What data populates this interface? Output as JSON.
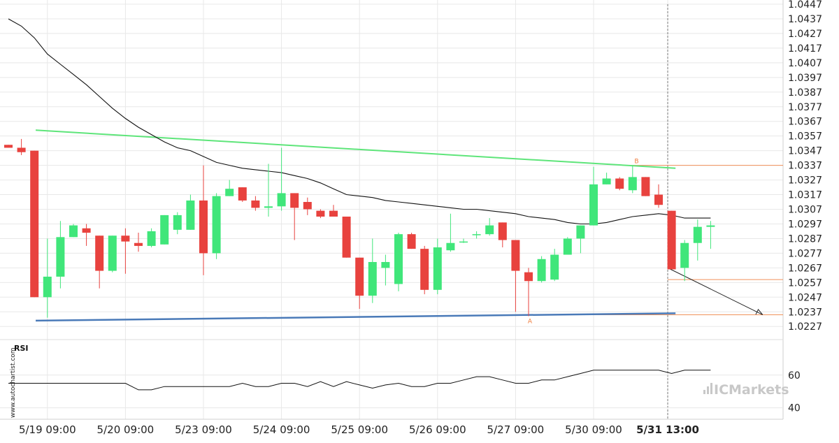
{
  "chart_data": {
    "type": "candlestick",
    "y_ticks": [
      "1.0447",
      "1.0437",
      "1.0427",
      "1.0417",
      "1.0407",
      "1.0397",
      "1.0387",
      "1.0377",
      "1.0367",
      "1.0357",
      "1.0347",
      "1.0337",
      "1.0327",
      "1.0317",
      "1.0307",
      "1.0297",
      "1.0287",
      "1.0277",
      "1.0267",
      "1.0257",
      "1.0247",
      "1.0237",
      "1.0227"
    ],
    "ylim": [
      1.0219,
      1.0447
    ],
    "x_ticks": [
      {
        "label": "5/19 09:00",
        "bar": 3,
        "bold": false
      },
      {
        "label": "5/20 09:00",
        "bar": 9,
        "bold": false
      },
      {
        "label": "5/23 09:00",
        "bar": 15,
        "bold": false
      },
      {
        "label": "5/24 09:00",
        "bar": 21,
        "bold": false
      },
      {
        "label": "5/25 09:00",
        "bar": 27,
        "bold": false
      },
      {
        "label": "5/26 09:00",
        "bar": 33,
        "bold": false
      },
      {
        "label": "5/27 09:00",
        "bar": 39,
        "bold": false
      },
      {
        "label": "5/30 09:00",
        "bar": 45,
        "bold": false
      },
      {
        "label": "5/31 13:00",
        "bar": 50.7,
        "bold": true
      }
    ],
    "candles": [
      [
        1.0351,
        1.0349,
        1.0351,
        1.0349
      ],
      [
        1.0349,
        1.0346,
        1.0355,
        1.0344
      ],
      [
        1.0347,
        1.0247,
        1.0347,
        1.0247
      ],
      [
        1.0247,
        1.0261,
        1.0287,
        1.0233
      ],
      [
        1.0261,
        1.0288,
        1.0299,
        1.0253
      ],
      [
        1.0288,
        1.0296,
        1.0297,
        1.0288
      ],
      [
        1.0294,
        1.0291,
        1.0297,
        1.0282
      ],
      [
        1.0289,
        1.0265,
        1.0289,
        1.0253
      ],
      [
        1.0265,
        1.0289,
        1.0289,
        1.0264
      ],
      [
        1.0289,
        1.0285,
        1.0294,
        1.0263
      ],
      [
        1.0284,
        1.0282,
        1.0291,
        1.0278
      ],
      [
        1.0282,
        1.0292,
        1.0294,
        1.0281
      ],
      [
        1.0283,
        1.0303,
        1.0303,
        1.0283
      ],
      [
        1.0293,
        1.0303,
        1.0305,
        1.029
      ],
      [
        1.0293,
        1.0313,
        1.0317,
        1.0293
      ],
      [
        1.0313,
        1.0277,
        1.0337,
        1.0262
      ],
      [
        1.0277,
        1.0316,
        1.0318,
        1.0273
      ],
      [
        1.0316,
        1.0321,
        1.0327,
        1.0316
      ],
      [
        1.0322,
        1.0313,
        1.0322,
        1.0312
      ],
      [
        1.0313,
        1.0308,
        1.0316,
        1.0306
      ],
      [
        1.0308,
        1.0309,
        1.0338,
        1.0302
      ],
      [
        1.0309,
        1.0318,
        1.0349,
        1.0306
      ],
      [
        1.0318,
        1.0308,
        1.0318,
        1.0286
      ],
      [
        1.0312,
        1.0307,
        1.0315,
        1.0303
      ],
      [
        1.0306,
        1.0302,
        1.0307,
        1.0301
      ],
      [
        1.0306,
        1.0302,
        1.031,
        1.0302
      ],
      [
        1.0302,
        1.0274,
        1.0302,
        1.0274
      ],
      [
        1.0274,
        1.0248,
        1.0274,
        1.0239
      ],
      [
        1.0248,
        1.0271,
        1.0287,
        1.0243
      ],
      [
        1.0267,
        1.0271,
        1.0276,
        1.0255
      ],
      [
        1.0256,
        1.029,
        1.0291,
        1.0251
      ],
      [
        1.029,
        1.028,
        1.0291,
        1.028
      ],
      [
        1.028,
        1.0252,
        1.0282,
        1.0249
      ],
      [
        1.0252,
        1.0281,
        1.0287,
        1.0249
      ],
      [
        1.0279,
        1.0284,
        1.0304,
        1.0278
      ],
      [
        1.0285,
        1.0285,
        1.0287,
        1.0284
      ],
      [
        1.029,
        1.029,
        1.0292,
        1.0287
      ],
      [
        1.029,
        1.0296,
        1.0301,
        1.0289
      ],
      [
        1.0298,
        1.0286,
        1.0298,
        1.0281
      ],
      [
        1.0286,
        1.0265,
        1.0286,
        1.0237
      ],
      [
        1.0264,
        1.0258,
        1.0267,
        1.0234
      ],
      [
        1.0258,
        1.0273,
        1.0275,
        1.0257
      ],
      [
        1.0259,
        1.0276,
        1.028,
        1.0258
      ],
      [
        1.0276,
        1.0287,
        1.0288,
        1.0277
      ],
      [
        1.0287,
        1.0296,
        1.0296,
        1.0277
      ],
      [
        1.0296,
        1.0324,
        1.0336,
        1.0296
      ],
      [
        1.0324,
        1.0328,
        1.0332,
        1.0324
      ],
      [
        1.0328,
        1.0321,
        1.0329,
        1.032
      ],
      [
        1.032,
        1.0329,
        1.0337,
        1.0318
      ],
      [
        1.0329,
        1.0316,
        1.0329,
        1.0316
      ],
      [
        1.0317,
        1.031,
        1.0324,
        1.0308
      ],
      [
        1.0306,
        1.0266,
        1.0306,
        1.0266
      ],
      [
        1.0267,
        1.0284,
        1.0286,
        1.0258
      ],
      [
        1.0284,
        1.0295,
        1.03,
        1.0272
      ],
      [
        1.0295,
        1.0296,
        1.0299,
        1.028
      ]
    ],
    "moving_average": [
      [
        0,
        1.0437
      ],
      [
        1,
        1.0432
      ],
      [
        2,
        1.0424
      ],
      [
        3,
        1.0413
      ],
      [
        4,
        1.0406
      ],
      [
        5,
        1.0399
      ],
      [
        6,
        1.0392
      ],
      [
        7,
        1.0384
      ],
      [
        8,
        1.0376
      ],
      [
        9,
        1.0369
      ],
      [
        10,
        1.0363
      ],
      [
        11,
        1.0358
      ],
      [
        12,
        1.0353
      ],
      [
        13,
        1.0349
      ],
      [
        14,
        1.0347
      ],
      [
        15,
        1.0343
      ],
      [
        16,
        1.0339
      ],
      [
        17,
        1.0337
      ],
      [
        18,
        1.0335
      ],
      [
        19,
        1.0334
      ],
      [
        20,
        1.0333
      ],
      [
        21,
        1.0332
      ],
      [
        22,
        1.033
      ],
      [
        23,
        1.0328
      ],
      [
        24,
        1.0325
      ],
      [
        25,
        1.0321
      ],
      [
        26,
        1.0317
      ],
      [
        27,
        1.0316
      ],
      [
        28,
        1.0315
      ],
      [
        29,
        1.0313
      ],
      [
        30,
        1.0312
      ],
      [
        31,
        1.0311
      ],
      [
        32,
        1.031
      ],
      [
        33,
        1.0309
      ],
      [
        34,
        1.0308
      ],
      [
        35,
        1.0307
      ],
      [
        36,
        1.0307
      ],
      [
        37,
        1.0306
      ],
      [
        38,
        1.0305
      ],
      [
        39,
        1.0304
      ],
      [
        40,
        1.0302
      ],
      [
        41,
        1.0301
      ],
      [
        42,
        1.03
      ],
      [
        43,
        1.0298
      ],
      [
        44,
        1.0297
      ],
      [
        45,
        1.0297
      ],
      [
        46,
        1.0298
      ],
      [
        47,
        1.03
      ],
      [
        48,
        1.0302
      ],
      [
        49,
        1.0303
      ],
      [
        50,
        1.0304
      ],
      [
        51,
        1.0303
      ],
      [
        52,
        1.0301
      ],
      [
        53,
        1.0301
      ],
      [
        54,
        1.0301
      ]
    ],
    "resistance_line": {
      "from": [
        2.1,
        1.0361
      ],
      "to": [
        51.3,
        1.0335
      ]
    },
    "support_line": {
      "from": [
        2.1,
        1.0231
      ],
      "to": [
        51.3,
        1.0236
      ]
    },
    "level_b": 1.0337,
    "level_a": 1.0235,
    "level_mid": 1.0259,
    "projection": {
      "from": [
        50.7,
        1.0267
      ],
      "to": [
        58,
        1.0235
      ]
    },
    "point_a": {
      "label": "A",
      "bar": 40.1,
      "value": 1.0235
    },
    "point_b": {
      "label": "B",
      "bar": 48.3,
      "value": 1.0337
    },
    "current_bar": 50.7,
    "rsi": {
      "title": "RSI",
      "y_ticks": [
        "60",
        "40"
      ],
      "ylim": [
        33,
        80
      ],
      "values": [
        55,
        55,
        55,
        55,
        55,
        55,
        55,
        55,
        55,
        55,
        51,
        51,
        53,
        53,
        53,
        53,
        53,
        53,
        55,
        53,
        53,
        55,
        55,
        53,
        56,
        53,
        56,
        54,
        52,
        54,
        55,
        53,
        53,
        55,
        55,
        57,
        59,
        59,
        57,
        55,
        55,
        57,
        57,
        59,
        61,
        63,
        63,
        63,
        63,
        63,
        63,
        61,
        63,
        63,
        63
      ]
    },
    "grid": true,
    "legend": "none"
  },
  "watermark_url": "www.autochartist.com",
  "brand": "ICMarkets",
  "colors": {
    "bull": "#40e67a",
    "bear": "#e8423e",
    "resistance": "#5ee57a",
    "support": "#4a7ab8",
    "level": "#f0915a",
    "ma": "#111111",
    "grid": "#e8e8e8"
  }
}
